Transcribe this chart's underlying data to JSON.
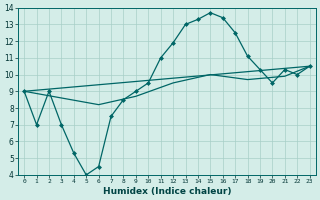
{
  "xlabel": "Humidex (Indice chaleur)",
  "ylabel": "",
  "bg_color": "#d4ede8",
  "grid_color": "#a8cfc8",
  "line_color": "#006666",
  "xlim": [
    -0.5,
    23.5
  ],
  "ylim": [
    4,
    14
  ],
  "xtick_labels": [
    "0",
    "1",
    "2",
    "3",
    "4",
    "5",
    "6",
    "7",
    "8",
    "9",
    "10",
    "11",
    "12",
    "13",
    "14",
    "15",
    "16",
    "17",
    "18",
    "19",
    "20",
    "21",
    "22",
    "23"
  ],
  "xtick_vals": [
    0,
    1,
    2,
    3,
    4,
    5,
    6,
    7,
    8,
    9,
    10,
    11,
    12,
    13,
    14,
    15,
    16,
    17,
    18,
    19,
    20,
    21,
    22,
    23
  ],
  "yticks": [
    4,
    5,
    6,
    7,
    8,
    9,
    10,
    11,
    12,
    13,
    14
  ],
  "series": [
    {
      "x": [
        0,
        1,
        2,
        3,
        4,
        5,
        6,
        7,
        8,
        9,
        10,
        11,
        12,
        13,
        14,
        15,
        16,
        17,
        18,
        19,
        20,
        21,
        22,
        23
      ],
      "y": [
        9,
        7,
        9,
        7,
        5.3,
        4.0,
        4.5,
        7.5,
        8.5,
        9.0,
        9.5,
        11.0,
        11.9,
        13.0,
        13.3,
        13.7,
        13.4,
        12.5,
        11.1,
        10.3,
        9.5,
        10.3,
        10.0,
        10.5
      ],
      "marker": "D",
      "markersize": 2.0,
      "linewidth": 0.9,
      "has_marker": true
    },
    {
      "x": [
        0,
        23
      ],
      "y": [
        9,
        10.5
      ],
      "marker": null,
      "markersize": 0,
      "linewidth": 0.9,
      "has_marker": false
    },
    {
      "x": [
        0,
        6,
        9,
        12,
        15,
        18,
        21,
        23
      ],
      "y": [
        9,
        8.2,
        8.7,
        9.5,
        10.0,
        9.7,
        9.9,
        10.5
      ],
      "marker": null,
      "markersize": 0,
      "linewidth": 0.9,
      "has_marker": false
    }
  ]
}
